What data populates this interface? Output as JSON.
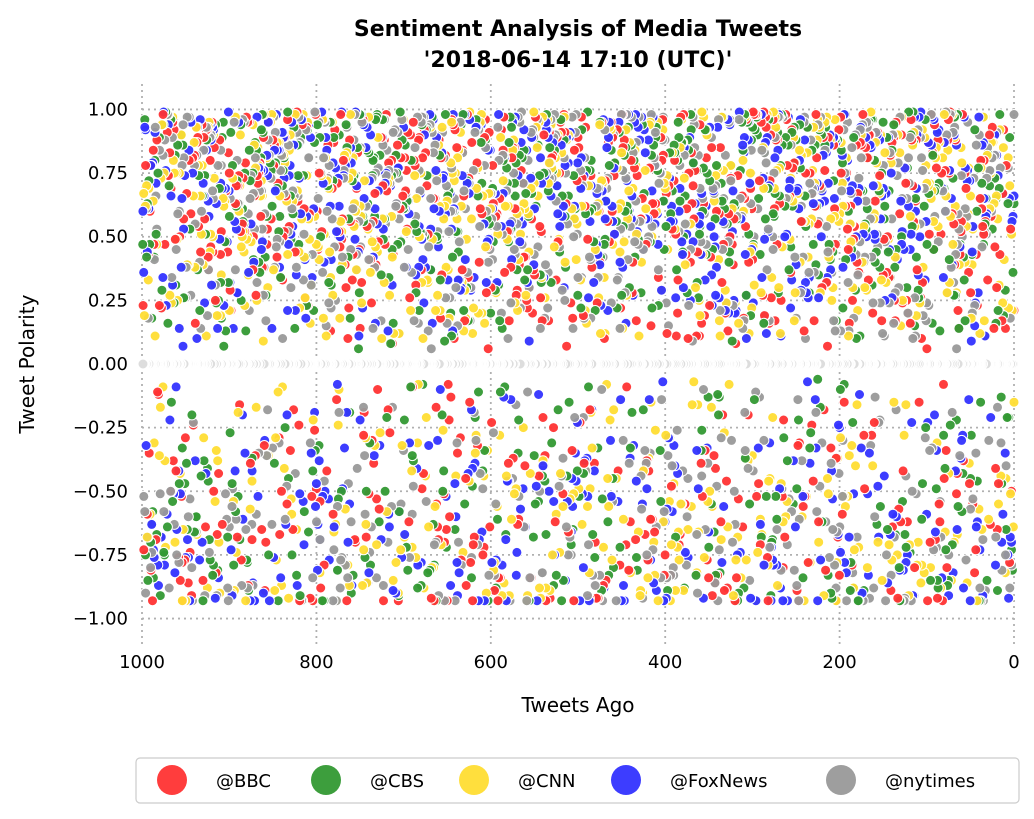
{
  "chart_data": {
    "type": "scatter",
    "title": "Sentiment Analysis of Media Tweets",
    "subtitle": "'2018-06-14 17:10 (UTC)'",
    "xlabel": "Tweets Ago",
    "ylabel": "Tweet Polarity",
    "xlim": [
      1000,
      0
    ],
    "ylim": [
      -1.1,
      1.1
    ],
    "x_reversed": true,
    "x_ticks": [
      1000,
      800,
      600,
      400,
      200,
      0
    ],
    "x_tick_labels": [
      "1000",
      "800",
      "600",
      "400",
      "200",
      "0"
    ],
    "y_ticks": [
      1.0,
      0.75,
      0.5,
      0.25,
      0.0,
      -0.25,
      -0.5,
      -0.75,
      -1.0
    ],
    "y_tick_labels": [
      "1.00",
      "0.75",
      "0.50",
      "0.25",
      "0.00",
      "−0.25",
      "−0.50",
      "−0.75",
      "−1.00"
    ],
    "grid": true,
    "grid_style": "dotted",
    "legend_position": "bottom",
    "point_edge_color": "#ffffff",
    "points_per_series": 1000,
    "series": [
      {
        "name": "@BBC",
        "color": "#ff3333",
        "seed": 11
      },
      {
        "name": "@CBS",
        "color": "#339933",
        "seed": 23
      },
      {
        "name": "@CNN",
        "color": "#ffdd33",
        "seed": 37
      },
      {
        "name": "@FoxNews",
        "color": "#3333ff",
        "seed": 51
      },
      {
        "name": "@nytimes",
        "color": "#999999",
        "seed": 67
      }
    ]
  }
}
